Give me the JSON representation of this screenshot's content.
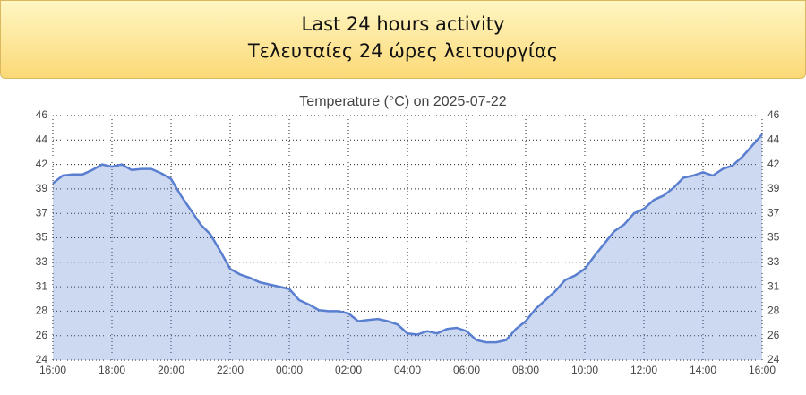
{
  "header": {
    "title_en": "Last 24 hours activity",
    "title_el": "Τελευταίες 24 ώρες λειτουργίας"
  },
  "chart_data": {
    "type": "line",
    "title": "Temperature (°C) on 2025-07-22",
    "x": [
      "16:00",
      null,
      null,
      null,
      null,
      null,
      "18:00",
      null,
      null,
      null,
      null,
      null,
      "20:00",
      null,
      null,
      null,
      null,
      null,
      "22:00",
      null,
      null,
      null,
      null,
      null,
      "00:00",
      null,
      null,
      null,
      null,
      null,
      "02:00",
      null,
      null,
      null,
      null,
      null,
      "04:00",
      null,
      null,
      null,
      null,
      null,
      "06:00",
      null,
      null,
      null,
      null,
      null,
      "08:00",
      null,
      null,
      null,
      null,
      null,
      "10:00",
      null,
      null,
      null,
      null,
      null,
      "12:00",
      null,
      null,
      null,
      null,
      null,
      "14:00",
      null,
      null,
      null,
      null,
      null,
      "16:00"
    ],
    "series": [
      {
        "name": "Temperature",
        "color": "#5a7fd0",
        "values": [
          39.9,
          40.6,
          40.7,
          40.7,
          41.1,
          41.6,
          41.4,
          41.6,
          41.1,
          41.2,
          41.2,
          40.8,
          40.3,
          38.8,
          37.5,
          36.2,
          35.3,
          33.8,
          32.2,
          31.7,
          31.4,
          31.0,
          30.8,
          30.6,
          30.4,
          29.4,
          29.0,
          28.5,
          28.4,
          28.4,
          28.2,
          27.5,
          27.6,
          27.7,
          27.5,
          27.2,
          26.4,
          26.3,
          26.6,
          26.4,
          26.8,
          26.9,
          26.6,
          25.8,
          25.6,
          25.6,
          25.8,
          26.8,
          27.5,
          28.6,
          29.4,
          30.2,
          31.2,
          31.6,
          32.2,
          33.4,
          34.5,
          35.6,
          36.2,
          37.2,
          37.6,
          38.4,
          38.8,
          39.5,
          40.4,
          40.6,
          40.9,
          40.6,
          41.2,
          41.5,
          42.3,
          43.3,
          44.3
        ]
      }
    ],
    "ylim": [
      24,
      46
    ],
    "yticks": [
      {
        "value": 24,
        "label": "24"
      },
      {
        "value": 26.2,
        "label": "26"
      },
      {
        "value": 28.4,
        "label": "28"
      },
      {
        "value": 30.6,
        "label": "31"
      },
      {
        "value": 32.8,
        "label": "33"
      },
      {
        "value": 35,
        "label": "35"
      },
      {
        "value": 37.2,
        "label": "37"
      },
      {
        "value": 39.4,
        "label": "39"
      },
      {
        "value": 41.6,
        "label": "42"
      },
      {
        "value": 43.8,
        "label": "44"
      },
      {
        "value": 46,
        "label": "46"
      }
    ],
    "grid": true
  }
}
